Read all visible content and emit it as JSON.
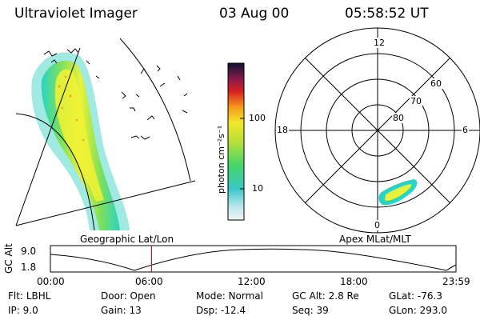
{
  "header": {
    "title": "Ultraviolet Imager",
    "date": "03 Aug 00",
    "time": "05:58:52 UT"
  },
  "colorbar": {
    "label": "photon cm⁻²s⁻¹",
    "ticks": [
      "100",
      "10"
    ]
  },
  "polar_plot": {
    "mlt_labels": {
      "top": "12",
      "left": "18",
      "right": "6",
      "bottom": "0"
    },
    "lat_labels": [
      "60",
      "70",
      "80"
    ]
  },
  "panels": {
    "left_label": "Geographic Lat/Lon",
    "right_label": "Apex MLat/MLT"
  },
  "altitude_plot": {
    "ylabel": "GC Alt",
    "yticks": [
      "9.0",
      "1.8"
    ],
    "xticks": [
      "00:00",
      "06:00",
      "12:00",
      "18:00",
      "23:59"
    ],
    "current_time_hours": 5.98,
    "marker_color": "#b22222"
  },
  "footer": {
    "rows": [
      [
        {
          "key": "Flt:",
          "value": "LBHL"
        },
        {
          "key": "Door:",
          "value": "Open"
        },
        {
          "key": "Mode:",
          "value": "Normal"
        },
        {
          "key": "GC Alt:",
          "value": "2.8 Re"
        },
        {
          "key": "GLat:",
          "value": "-76.3"
        }
      ],
      [
        {
          "key": "IP:",
          "value": "9.0"
        },
        {
          "key": "Gain:",
          "value": "13"
        },
        {
          "key": "Dsp:",
          "value": "-12.4"
        },
        {
          "key": "Seq:",
          "value": "39"
        },
        {
          "key": "GLon:",
          "value": "293.0"
        }
      ]
    ]
  }
}
